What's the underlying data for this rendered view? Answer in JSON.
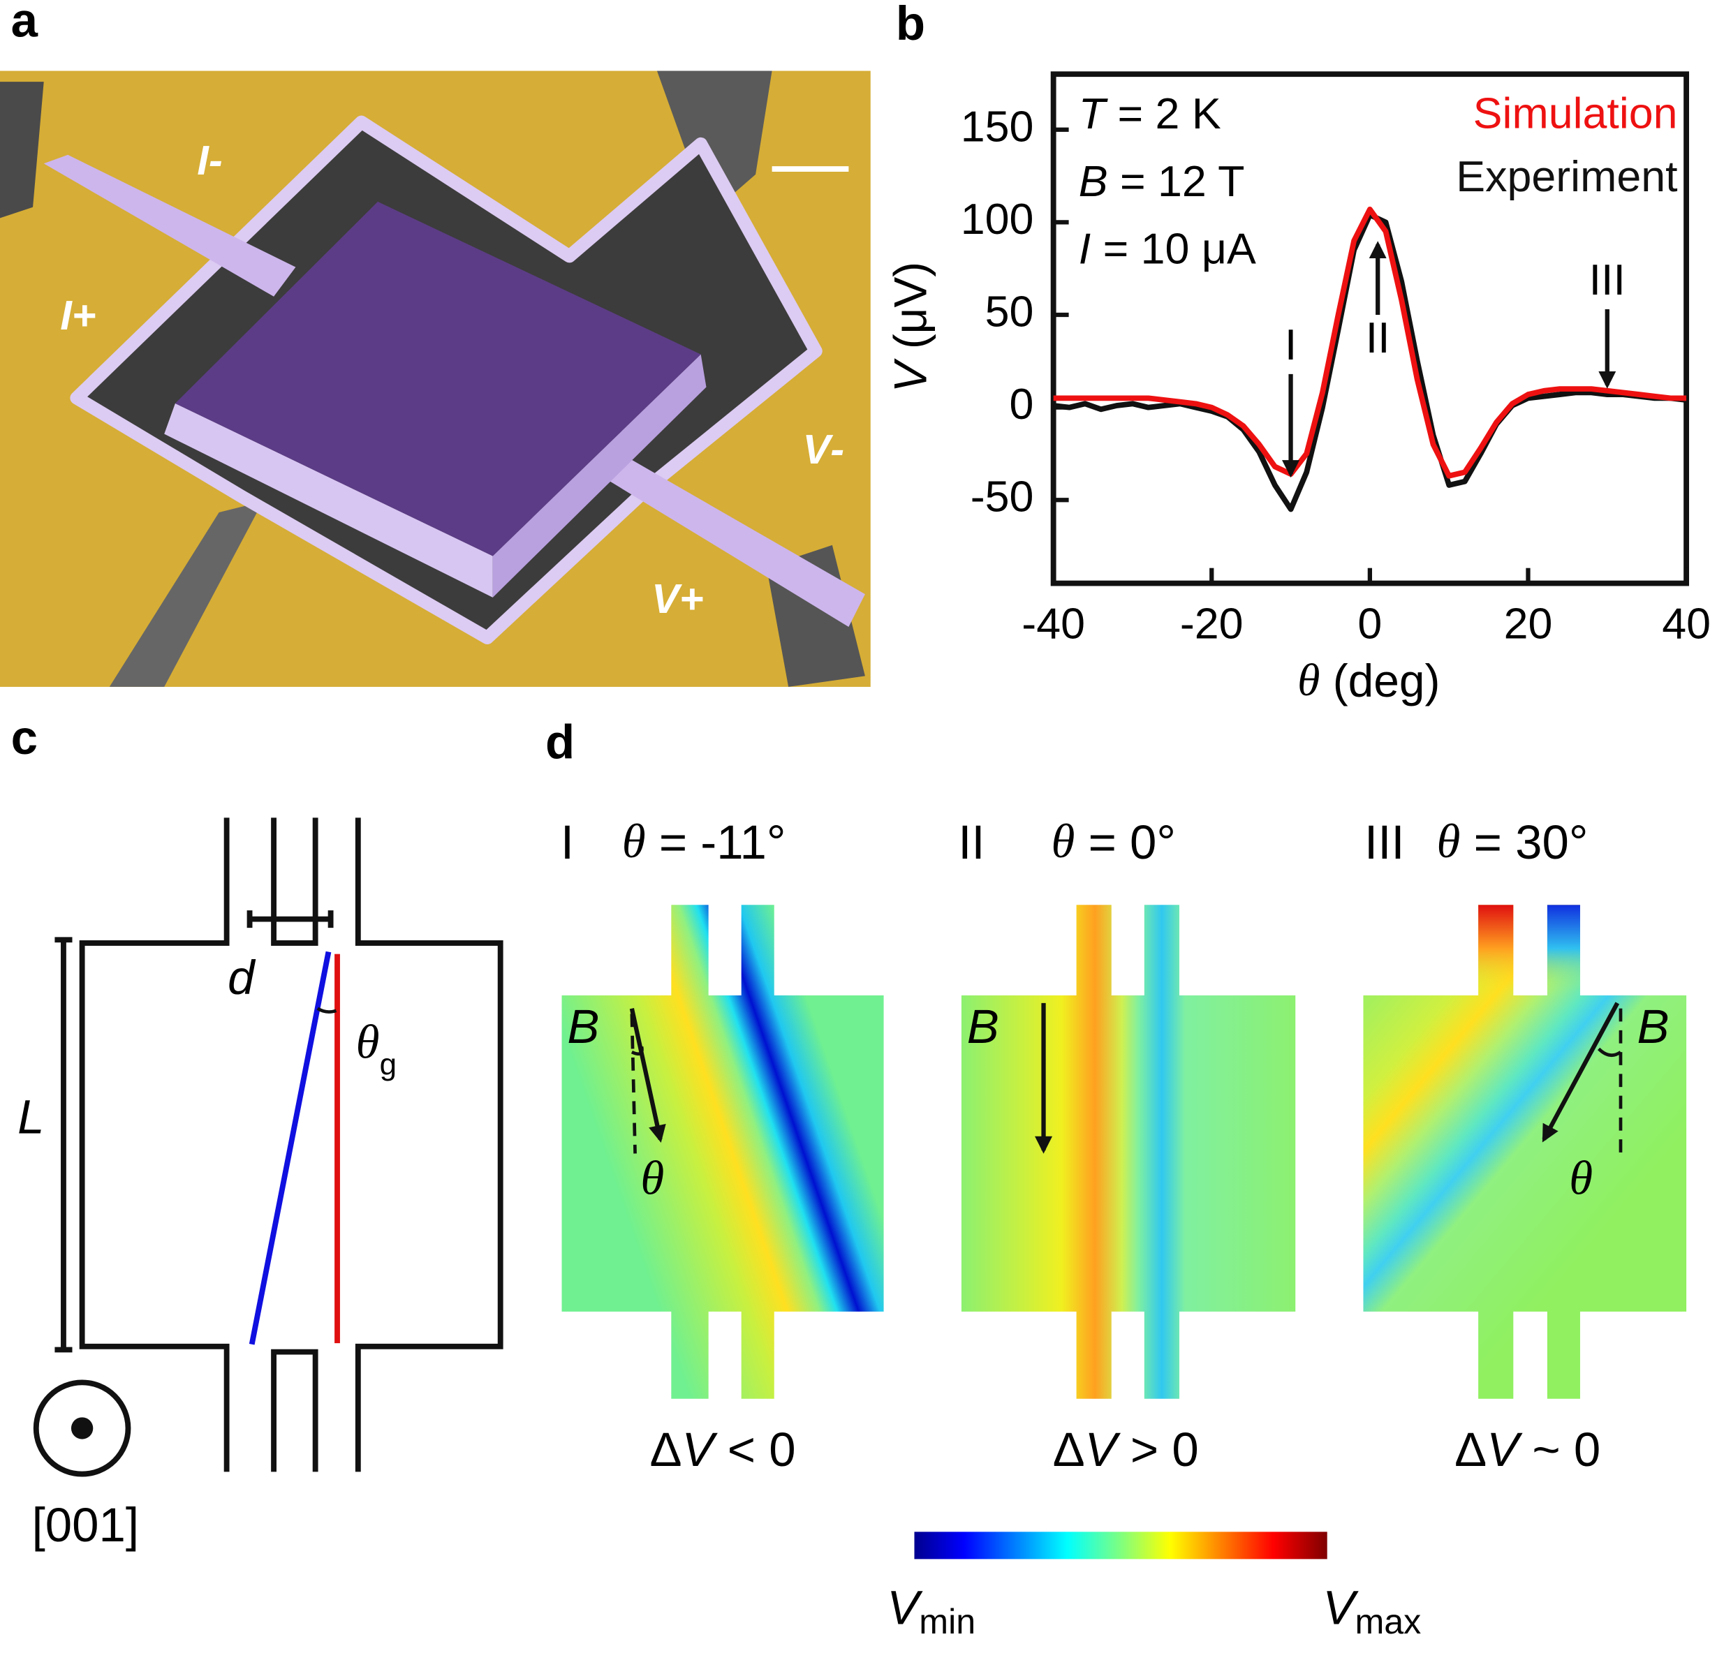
{
  "panel_labels": [
    "a",
    "b",
    "c",
    "d"
  ],
  "panel_a": {
    "labels": [
      [
        "I",
        "-"
      ],
      [
        "I",
        "+"
      ],
      [
        "V",
        "-"
      ],
      [
        "V",
        "+"
      ]
    ]
  },
  "chart_data": {
    "type": "line",
    "x": [
      -40,
      -38,
      -36,
      -34,
      -32,
      -30,
      -28,
      -26,
      -24,
      -22,
      -20,
      -18,
      -16,
      -14,
      -12,
      -10,
      -8,
      -6,
      -4,
      -2,
      0,
      2,
      4,
      6,
      8,
      10,
      12,
      14,
      16,
      18,
      20,
      22,
      24,
      26,
      28,
      30,
      32,
      34,
      36,
      38,
      40
    ],
    "series": [
      {
        "name": "Simulation",
        "color": "#ee1111",
        "values": [
          5,
          5,
          5,
          5,
          5,
          5,
          5,
          4,
          3,
          2,
          0,
          -4,
          -10,
          -20,
          -32,
          -36,
          -25,
          8,
          50,
          90,
          107,
          95,
          58,
          15,
          -20,
          -37,
          -35,
          -22,
          -8,
          2,
          7,
          9,
          10,
          10,
          10,
          9,
          8,
          7,
          6,
          5,
          5
        ]
      },
      {
        "name": "Experiment",
        "color": "#111111",
        "values": [
          1,
          0,
          2,
          -1,
          1,
          2,
          0,
          1,
          2,
          0,
          -2,
          -5,
          -12,
          -24,
          -42,
          -55,
          -35,
          0,
          42,
          85,
          104,
          100,
          68,
          25,
          -15,
          -42,
          -40,
          -25,
          -9,
          1,
          5,
          6,
          7,
          8,
          8,
          7,
          7,
          6,
          5,
          5,
          4
        ]
      }
    ],
    "xlim": [
      -40,
      40
    ],
    "ylim": [
      -95,
      180
    ],
    "xticks": [
      -40,
      -20,
      0,
      20,
      40
    ],
    "yticks": [
      -50,
      0,
      50,
      100,
      150
    ],
    "xlabel": [
      "θ",
      " (deg)"
    ],
    "ylabel": [
      "V",
      " (μV)"
    ],
    "conditions": [
      [
        "T",
        " = 2 K"
      ],
      [
        "B",
        " = 12 T"
      ],
      [
        "I",
        "  = 10 μA"
      ]
    ],
    "legend": "upper right",
    "annotations": [
      {
        "text": "I",
        "x": -10,
        "y_from": 18,
        "y_to": -36
      },
      {
        "text": "II",
        "x": 1,
        "y_from": 50,
        "y_to": 88
      },
      {
        "text": "III",
        "x": 30,
        "y_from": 53,
        "y_to": 12
      }
    ]
  },
  "panel_c": {
    "d": "d",
    "L": "L",
    "theta_g": [
      "θ",
      "g"
    ],
    "axis": "[001]"
  },
  "panel_d": {
    "maps": [
      {
        "case": "I",
        "angle": [
          "θ",
          " = -11°"
        ],
        "field": "B",
        "field_angle": "θ",
        "result": [
          "Δ",
          "V",
          " < 0"
        ]
      },
      {
        "case": "II",
        "angle": [
          "θ",
          " = 0°"
        ],
        "field": "B",
        "result": [
          "Δ",
          "V",
          " > 0"
        ]
      },
      {
        "case": "III",
        "angle": [
          "θ",
          " = 30°"
        ],
        "field": "B",
        "field_angle": "θ",
        "result": [
          "Δ",
          "V",
          " ~ 0"
        ]
      }
    ],
    "colorbar": {
      "min": [
        "V",
        "min"
      ],
      "max": [
        "V",
        "max"
      ]
    }
  }
}
